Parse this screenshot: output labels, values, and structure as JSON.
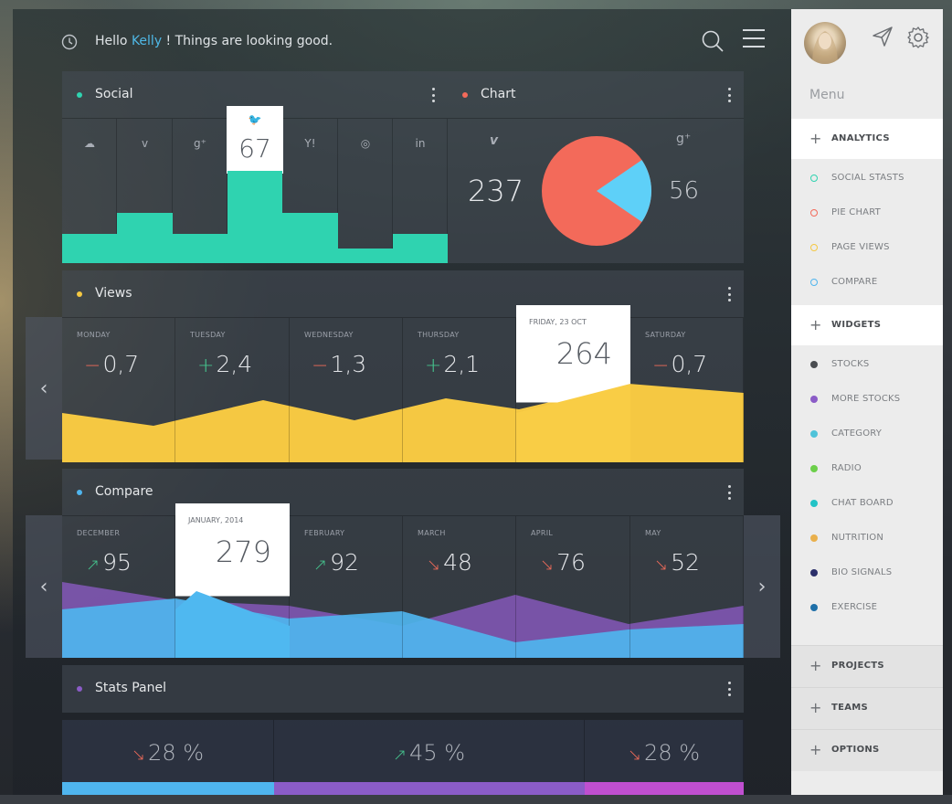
{
  "header": {
    "greeting_prefix": "Hello ",
    "user_name": "Kelly",
    "greeting_suffix": " ! Things are looking good."
  },
  "social": {
    "title": "Social",
    "columns": [
      {
        "icon": "soundcloud-icon",
        "glyph": "☁",
        "level": 0.2
      },
      {
        "icon": "vimeo-icon",
        "glyph": "v",
        "level": 0.35
      },
      {
        "icon": "google-plus-icon",
        "glyph": "g⁺",
        "level": 0.2
      },
      {
        "icon": "twitter-icon",
        "glyph": "🐦",
        "value": "67",
        "level": 0.64,
        "highlight": true
      },
      {
        "icon": "yahoo-icon",
        "glyph": "Y!",
        "level": 0.35
      },
      {
        "icon": "dribbble-icon",
        "glyph": "◎",
        "level": 0.1
      },
      {
        "icon": "linkedin-icon",
        "glyph": "in",
        "level": 0.2
      }
    ]
  },
  "chart": {
    "title": "Chart",
    "left_icon": "vimeo-icon",
    "right_icon": "google-plus-icon",
    "left_glyph": "v",
    "right_glyph": "g⁺",
    "left_value": "237",
    "right_value": "56",
    "slices": [
      {
        "value": 237,
        "color": "#f36a5a"
      },
      {
        "value": 56,
        "color": "#5ed0f8"
      }
    ]
  },
  "views": {
    "title": "Views",
    "days": [
      {
        "label": "MONDAY",
        "sign": "−",
        "value": "0,7",
        "dir": "neg"
      },
      {
        "label": "TUESDAY",
        "sign": "+",
        "value": "2,4",
        "dir": "pos"
      },
      {
        "label": "WEDNESDAY",
        "sign": "−",
        "value": "1,3",
        "dir": "neg"
      },
      {
        "label": "THURSDAY",
        "sign": "+",
        "value": "2,1",
        "dir": "pos"
      },
      {
        "label": "FRIDAY, 23 OCT",
        "value": "264",
        "highlight": true
      },
      {
        "label": "SATURDAY",
        "sign": "−",
        "value": "0,7",
        "dir": "neg"
      }
    ],
    "nav_prev": "‹"
  },
  "compare": {
    "title": "Compare",
    "months": [
      {
        "label": "DECEMBER",
        "arrow": "↗",
        "dir": "up",
        "value": "95"
      },
      {
        "label": "JANUARY, 2014",
        "value": "279",
        "highlight": true
      },
      {
        "label": "FEBRUARY",
        "arrow": "↗",
        "dir": "up",
        "value": "92"
      },
      {
        "label": "MARCH",
        "arrow": "↘",
        "dir": "down",
        "value": "48"
      },
      {
        "label": "APRIL",
        "arrow": "↘",
        "dir": "down",
        "value": "76"
      },
      {
        "label": "MAY",
        "arrow": "↘",
        "dir": "down",
        "value": "52"
      }
    ],
    "nav_prev": "‹",
    "nav_next": "›"
  },
  "stats": {
    "title": "Stats Panel",
    "items": [
      {
        "arrow": "↘",
        "dir": "down",
        "value": "28 %",
        "color": "#4fb5ee"
      },
      {
        "arrow": "↗",
        "dir": "up",
        "value": "45 %",
        "color": "#8b5cc7"
      },
      {
        "arrow": "↘",
        "dir": "down",
        "value": "28 %",
        "color": "#c04fd0"
      }
    ]
  },
  "sidebar": {
    "menu_title": "Menu",
    "sections": [
      {
        "label": "ANALYTICS",
        "items": [
          {
            "label": "SOCIAL STASTS",
            "color": "#2fd3b0",
            "ring": true
          },
          {
            "label": "PIE CHART",
            "color": "#f36a5a",
            "ring": true
          },
          {
            "label": "PAGE VIEWS",
            "color": "#f5c842",
            "ring": true
          },
          {
            "label": "COMPARE",
            "color": "#4fb5ee",
            "ring": true
          }
        ]
      },
      {
        "label": "WIDGETS",
        "items": [
          {
            "label": "STOCKS",
            "color": "#4a4d51"
          },
          {
            "label": "MORE STOCKS",
            "color": "#8b5cc7"
          },
          {
            "label": "CATEGORY",
            "color": "#4fc3d9"
          },
          {
            "label": "RADIO",
            "color": "#6ccf4a"
          },
          {
            "label": "CHAT BOARD",
            "color": "#22c3c6"
          },
          {
            "label": "NUTRITION",
            "color": "#e9b04c"
          },
          {
            "label": "BIO SIGNALS",
            "color": "#2b2f6a"
          },
          {
            "label": "EXERCISE",
            "color": "#1e6fa8"
          }
        ]
      }
    ],
    "collapsed": [
      "PROJECTS",
      "TEAMS",
      "OPTIONS"
    ]
  }
}
